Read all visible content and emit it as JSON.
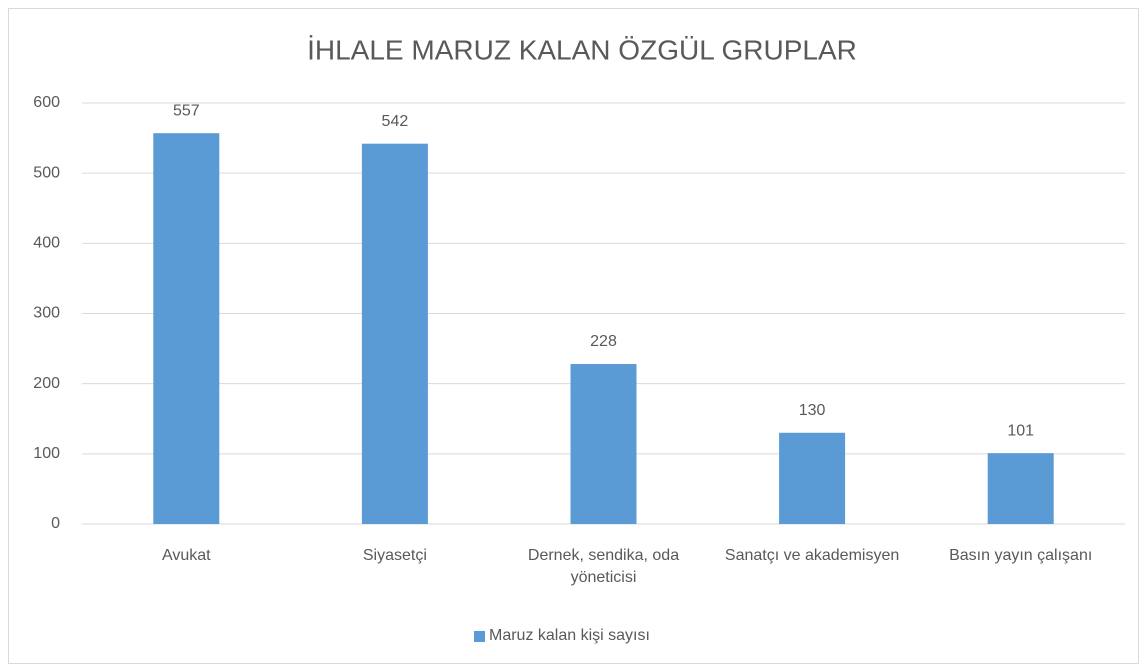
{
  "chart_data": {
    "type": "bar",
    "title": "İHLALE MARUZ KALAN ÖZGÜL GRUPLAR",
    "categories": [
      "Avukat",
      "Siyasetçi",
      "Dernek, sendika, oda yöneticisi",
      "Sanatçı ve akademisyen",
      "Basın yayın çalışanı"
    ],
    "series": [
      {
        "name": "Maruz kalan kişi sayısı",
        "color": "#5b9bd5",
        "values": [
          557,
          542,
          228,
          130,
          101
        ]
      }
    ],
    "ylim": [
      0,
      600
    ],
    "yticks": [
      0,
      100,
      200,
      300,
      400,
      500,
      600
    ],
    "grid": true,
    "legend": "bottom"
  }
}
